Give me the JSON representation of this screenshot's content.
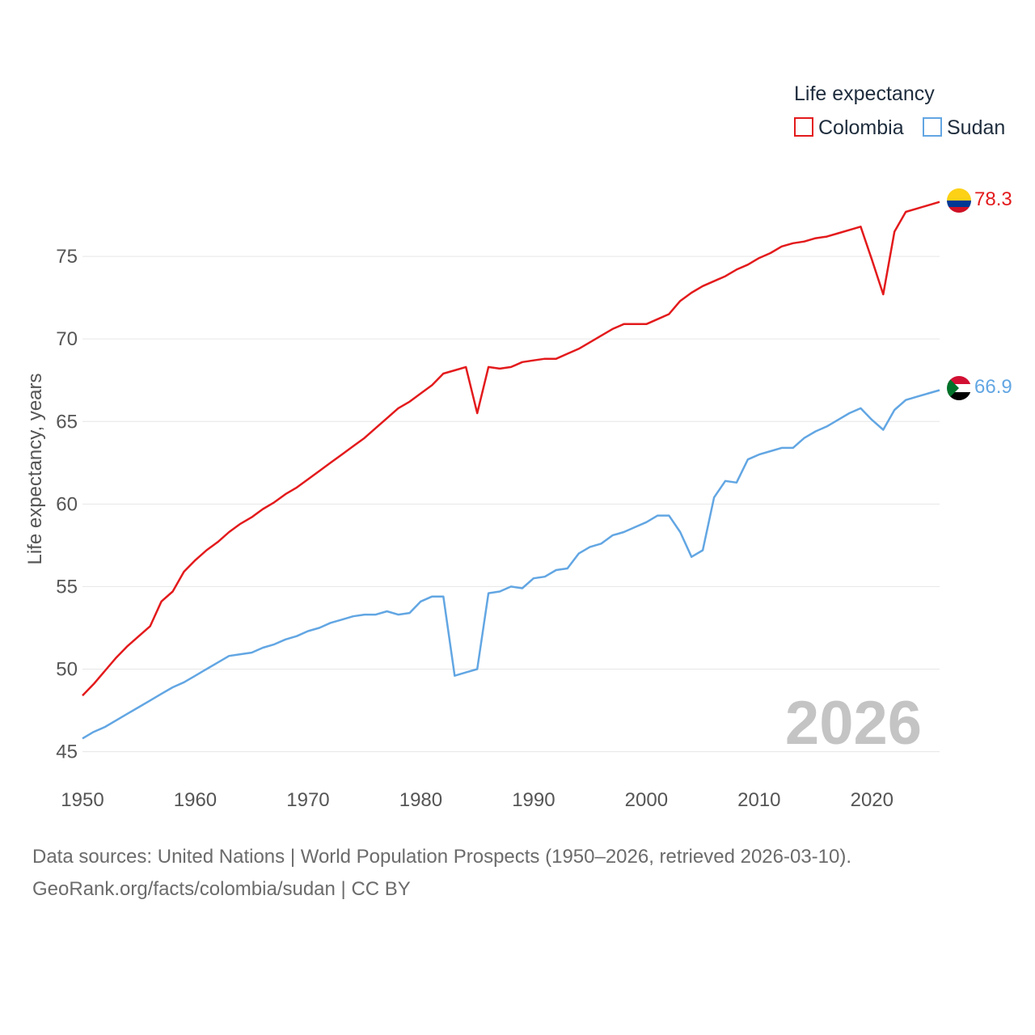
{
  "chart_data": {
    "type": "line",
    "title": "",
    "xlabel": "",
    "ylabel": "Life expectancy, years",
    "xlim": [
      1950,
      2026
    ],
    "ylim": [
      44,
      80
    ],
    "x_ticks": [
      1950,
      1960,
      1970,
      1980,
      1990,
      2000,
      2010,
      2020
    ],
    "y_ticks": [
      45,
      50,
      55,
      60,
      65,
      70,
      75
    ],
    "grid": true,
    "legend": {
      "title": "Life expectancy",
      "position": "top-right"
    },
    "year_label": "2026",
    "x": [
      1950,
      1951,
      1952,
      1953,
      1954,
      1955,
      1956,
      1957,
      1958,
      1959,
      1960,
      1961,
      1962,
      1963,
      1964,
      1965,
      1966,
      1967,
      1968,
      1969,
      1970,
      1971,
      1972,
      1973,
      1974,
      1975,
      1976,
      1977,
      1978,
      1979,
      1980,
      1981,
      1982,
      1983,
      1984,
      1985,
      1986,
      1987,
      1988,
      1989,
      1990,
      1991,
      1992,
      1993,
      1994,
      1995,
      1996,
      1997,
      1998,
      1999,
      2000,
      2001,
      2002,
      2003,
      2004,
      2005,
      2006,
      2007,
      2008,
      2009,
      2010,
      2011,
      2012,
      2013,
      2014,
      2015,
      2016,
      2017,
      2018,
      2019,
      2020,
      2021,
      2022,
      2023,
      2024,
      2025,
      2026
    ],
    "series": [
      {
        "name": "Colombia",
        "color": "#e31a1c",
        "end_label": "78.3",
        "flag": "colombia-flag-icon",
        "values": [
          48.4,
          49.1,
          49.9,
          50.7,
          51.4,
          52.0,
          52.6,
          54.1,
          54.7,
          55.9,
          56.6,
          57.2,
          57.7,
          58.3,
          58.8,
          59.2,
          59.7,
          60.1,
          60.6,
          61.0,
          61.5,
          62.0,
          62.5,
          63.0,
          63.5,
          64.0,
          64.6,
          65.2,
          65.8,
          66.2,
          66.7,
          67.2,
          67.9,
          68.1,
          68.3,
          65.5,
          68.3,
          68.2,
          68.3,
          68.6,
          68.7,
          68.8,
          68.8,
          69.1,
          69.4,
          69.8,
          70.2,
          70.6,
          70.9,
          70.9,
          70.9,
          71.2,
          71.5,
          72.3,
          72.8,
          73.2,
          73.5,
          73.8,
          74.2,
          74.5,
          74.9,
          75.2,
          75.6,
          75.8,
          75.9,
          76.1,
          76.2,
          76.4,
          76.6,
          76.8,
          74.8,
          72.7,
          76.5,
          77.7,
          77.9,
          78.1,
          78.3
        ]
      },
      {
        "name": "Sudan",
        "color": "#62a6e3",
        "end_label": "66.9",
        "flag": "sudan-flag-icon",
        "values": [
          45.8,
          46.2,
          46.5,
          46.9,
          47.3,
          47.7,
          48.1,
          48.5,
          48.9,
          49.2,
          49.6,
          50.0,
          50.4,
          50.8,
          50.9,
          51.0,
          51.3,
          51.5,
          51.8,
          52.0,
          52.3,
          52.5,
          52.8,
          53.0,
          53.2,
          53.3,
          53.3,
          53.5,
          53.3,
          53.4,
          54.1,
          54.4,
          54.4,
          49.6,
          49.8,
          50.0,
          54.6,
          54.7,
          55.0,
          54.9,
          55.5,
          55.6,
          56.0,
          56.1,
          57.0,
          57.4,
          57.6,
          58.1,
          58.3,
          58.6,
          58.9,
          59.3,
          59.3,
          58.3,
          56.8,
          57.2,
          60.4,
          61.4,
          61.3,
          62.7,
          63.0,
          63.2,
          63.4,
          63.4,
          64.0,
          64.4,
          64.7,
          65.1,
          65.5,
          65.8,
          65.1,
          64.5,
          65.7,
          66.3,
          66.5,
          66.7,
          66.9
        ]
      }
    ]
  },
  "footer": {
    "sources": "Data sources: United Nations | World Population Prospects (1950–2026, retrieved 2026-03-10).",
    "credit": "GeoRank.org/facts/colombia/sudan | CC BY"
  }
}
